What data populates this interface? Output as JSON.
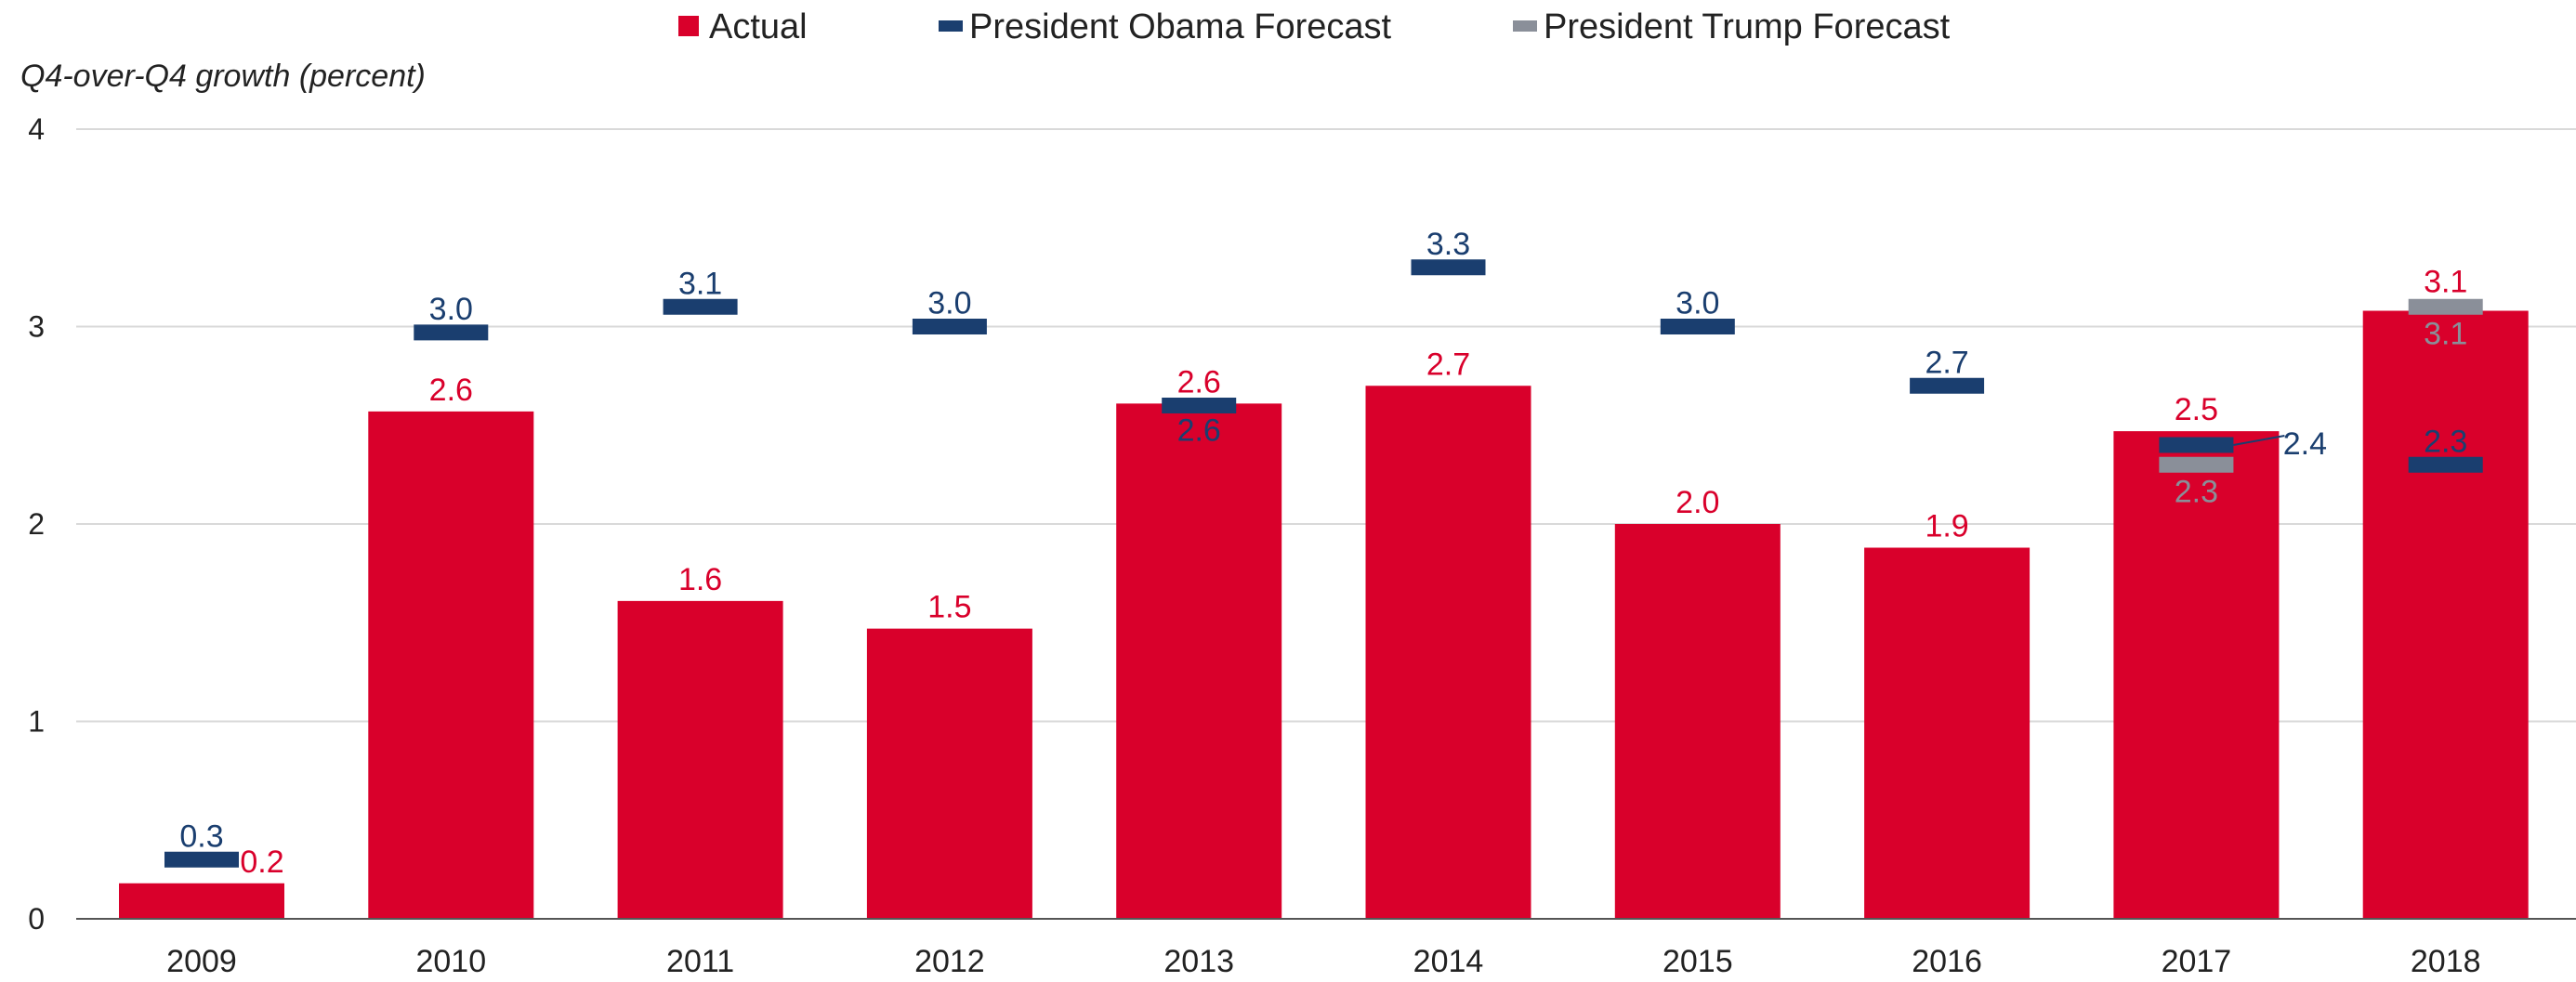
{
  "chart_data": {
    "type": "bar",
    "title": "",
    "xlabel": "",
    "ylabel": "Q4-over-Q4 growth (percent)",
    "ylim": [
      0,
      4
    ],
    "yticks": [
      "0",
      "1",
      "2",
      "3",
      "4"
    ],
    "grid": true,
    "legend_position": "top-center",
    "categories": [
      "2009",
      "2010",
      "2011",
      "2012",
      "2013",
      "2014",
      "2015",
      "2016",
      "2017",
      "2018"
    ],
    "series": [
      {
        "name": "Actual",
        "kind": "bar",
        "color": "#d9002b",
        "values": [
          0.18,
          2.57,
          1.61,
          1.47,
          2.61,
          2.7,
          2.0,
          1.88,
          2.47,
          3.08
        ],
        "labels": [
          "0.2",
          "2.6",
          "1.6",
          "1.5",
          "2.6",
          "2.7",
          "2.0",
          "1.9",
          "2.5",
          "3.1"
        ]
      },
      {
        "name": "President Obama Forecast",
        "kind": "marker",
        "color": "#1a3e6f",
        "values": [
          0.3,
          2.97,
          3.1,
          3.0,
          2.6,
          3.3,
          3.0,
          2.7,
          2.4,
          2.3
        ],
        "labels": [
          "0.3",
          "3.0",
          "3.1",
          "3.0",
          "2.6",
          "3.3",
          "3.0",
          "2.7",
          "2.4",
          "2.3"
        ]
      },
      {
        "name": "President Trump Forecast",
        "kind": "marker",
        "color": "#8a8f99",
        "values": [
          null,
          null,
          null,
          null,
          null,
          null,
          null,
          null,
          2.3,
          3.1
        ],
        "labels": [
          null,
          null,
          null,
          null,
          null,
          null,
          null,
          null,
          "2.3",
          "3.1"
        ]
      }
    ]
  }
}
